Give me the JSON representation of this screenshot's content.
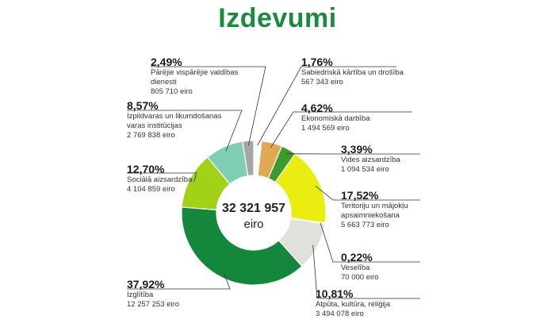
{
  "title": "Izdevumi",
  "chart_data": {
    "type": "donut",
    "total_value": "32 321 957",
    "total_unit": "eiro",
    "slices": [
      {
        "pct_label": "1,76%",
        "value": 1.76,
        "amount": "567 343 eiro",
        "name": "Sabiedriskā kārtība un drošība",
        "color": "#ffffff"
      },
      {
        "pct_label": "4,62%",
        "value": 4.62,
        "amount": "1 494 569 eiro",
        "name": "Ekonomiskā darbība",
        "color": "#e0a852"
      },
      {
        "pct_label": "3,39%",
        "value": 3.39,
        "amount": "1 094 534 eiro",
        "name": "Vides aizsardzība",
        "color": "#3f9a2e"
      },
      {
        "pct_label": "17,52%",
        "value": 17.52,
        "amount": "5 663 773 eiro",
        "name": "Teritoriju un mājokļu apsaimniekošana",
        "color": "#eaed0f"
      },
      {
        "pct_label": "0,22%",
        "value": 0.22,
        "amount": "70 000 eiro",
        "name": "Veselība",
        "color": "#c8c8c8"
      },
      {
        "pct_label": "10,81%",
        "value": 10.81,
        "amount": "3 494 078 eiro",
        "name": "Atpūta, kultūra, reliģija",
        "color": "#dfe1da"
      },
      {
        "pct_label": "37,92%",
        "value": 37.92,
        "amount": "12 257 253 eiro",
        "name": "Izglītība",
        "color": "#14873c"
      },
      {
        "pct_label": "12,70%",
        "value": 12.7,
        "amount": "4 104 859 eiro",
        "name": "Sociālā aizsardzība",
        "color": "#a2d217"
      },
      {
        "pct_label": "8,57%",
        "value": 8.57,
        "amount": "2 769 838 eiro",
        "name": "Izpildvaras un likumdošanas varas institūcijas",
        "color": "#7fcdb2"
      },
      {
        "pct_label": "2,49%",
        "value": 2.49,
        "amount": "805 710 eiro",
        "name": "Pārējie vispārējie valdības dienesti",
        "color": "#a6a6a6"
      }
    ]
  }
}
